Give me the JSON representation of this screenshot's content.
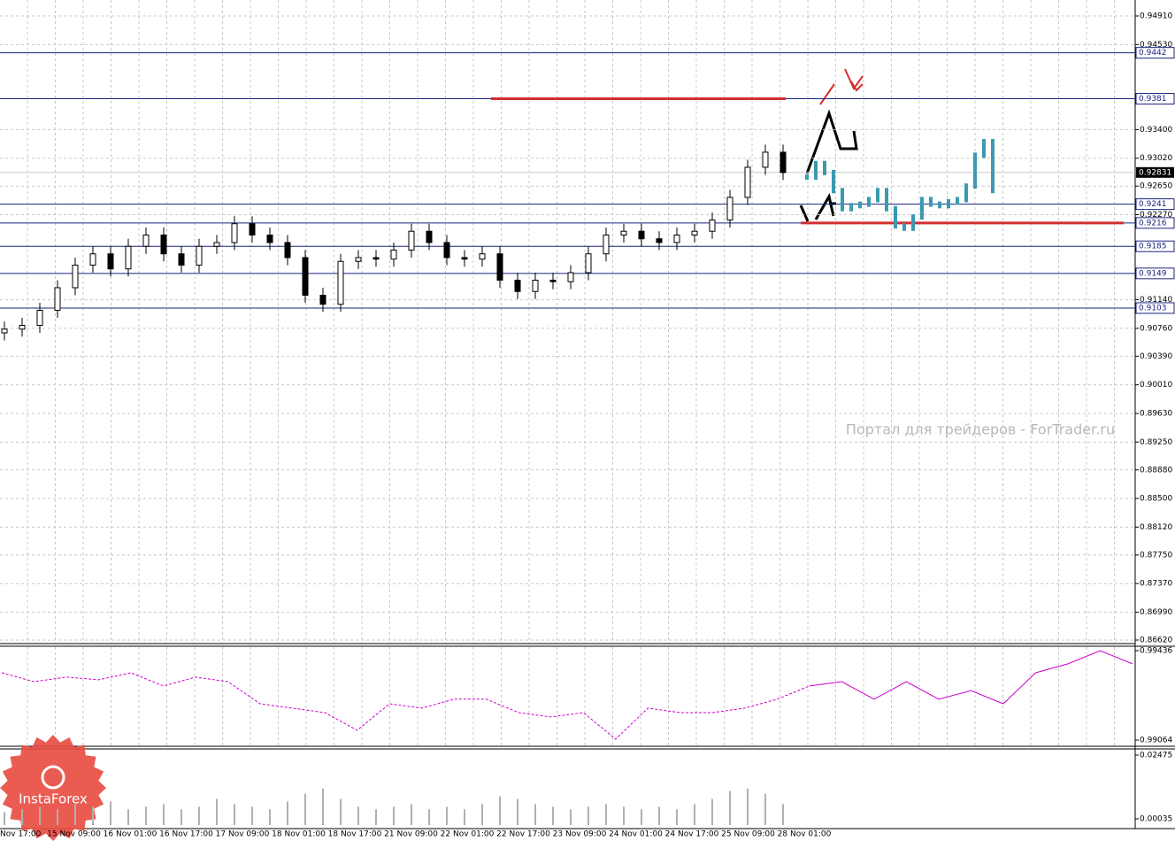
{
  "chart_data": [
    {
      "type": "candlestick",
      "x_labels": [
        "Nov 17:00",
        "15 Nov 09:00",
        "16 Nov 01:00",
        "16 Nov 17:00",
        "17 Nov 09:00",
        "18 Nov 01:00",
        "18 Nov 17:00",
        "21 Nov 09:00",
        "22 Nov 01:00",
        "22 Nov 17:00",
        "23 Nov 09:00",
        "24 Nov 01:00",
        "24 Nov 17:00",
        "25 Nov 09:00",
        "28 Nov 01:00"
      ],
      "ylim": [
        0.8662,
        0.9491
      ],
      "yticks": [
        {
          "value": 0.9491,
          "label": "0.94910"
        },
        {
          "value": 0.9453,
          "label": "0.94530"
        },
        {
          "value": 0.934,
          "label": "0.93400"
        },
        {
          "value": 0.9302,
          "label": "0.93020"
        },
        {
          "value": 0.9265,
          "label": "0.92650"
        },
        {
          "value": 0.9227,
          "label": "0.92270"
        },
        {
          "value": 0.9114,
          "label": "0.91140"
        },
        {
          "value": 0.9076,
          "label": "0.90760"
        },
        {
          "value": 0.9039,
          "label": "0.90390"
        },
        {
          "value": 0.9001,
          "label": "0.90010"
        },
        {
          "value": 0.8963,
          "label": "0.89630"
        },
        {
          "value": 0.8925,
          "label": "0.89250"
        },
        {
          "value": 0.8888,
          "label": "0.88880"
        },
        {
          "value": 0.885,
          "label": "0.88500"
        },
        {
          "value": 0.8812,
          "label": "0.88120"
        },
        {
          "value": 0.8775,
          "label": "0.87750"
        },
        {
          "value": 0.8737,
          "label": "0.87370"
        },
        {
          "value": 0.8699,
          "label": "0.86990"
        },
        {
          "value": 0.8662,
          "label": "0.86620"
        }
      ],
      "grid": true,
      "color": "#000000",
      "open": [
        0.907,
        0.9075,
        0.908,
        0.91,
        0.913,
        0.916,
        0.9175,
        0.9155,
        0.9185,
        0.92,
        0.9175,
        0.916,
        0.9185,
        0.919,
        0.9215,
        0.92,
        0.919,
        0.917,
        0.912,
        0.9108,
        0.9165,
        0.917,
        0.9168,
        0.918,
        0.9205,
        0.919,
        0.917,
        0.9168,
        0.9175,
        0.914,
        0.9125,
        0.914,
        0.9138,
        0.915,
        0.9175,
        0.92,
        0.9205,
        0.9195,
        0.919,
        0.92,
        0.9205,
        0.922,
        0.925,
        0.929,
        0.931
      ],
      "high": [
        0.9085,
        0.909,
        0.911,
        0.914,
        0.917,
        0.9185,
        0.9185,
        0.9195,
        0.921,
        0.921,
        0.9185,
        0.9195,
        0.92,
        0.9225,
        0.9225,
        0.921,
        0.92,
        0.918,
        0.913,
        0.9175,
        0.918,
        0.918,
        0.919,
        0.9215,
        0.9215,
        0.92,
        0.918,
        0.9185,
        0.9185,
        0.915,
        0.915,
        0.915,
        0.916,
        0.9185,
        0.921,
        0.9215,
        0.9215,
        0.9205,
        0.921,
        0.9215,
        0.923,
        0.926,
        0.93,
        0.932,
        0.932
      ],
      "low": [
        0.906,
        0.9065,
        0.907,
        0.909,
        0.912,
        0.915,
        0.9145,
        0.9145,
        0.9175,
        0.9165,
        0.915,
        0.915,
        0.9175,
        0.918,
        0.919,
        0.918,
        0.916,
        0.911,
        0.9098,
        0.9098,
        0.9155,
        0.9158,
        0.9158,
        0.917,
        0.918,
        0.916,
        0.9158,
        0.9158,
        0.913,
        0.9115,
        0.9115,
        0.9128,
        0.9128,
        0.914,
        0.9165,
        0.919,
        0.9185,
        0.918,
        0.918,
        0.919,
        0.9195,
        0.921,
        0.924,
        0.928,
        0.9273
      ],
      "close": [
        0.9075,
        0.908,
        0.91,
        0.913,
        0.916,
        0.9175,
        0.9155,
        0.9185,
        0.92,
        0.9175,
        0.916,
        0.9185,
        0.919,
        0.9215,
        0.92,
        0.919,
        0.917,
        0.912,
        0.9108,
        0.9165,
        0.917,
        0.9168,
        0.918,
        0.9205,
        0.919,
        0.917,
        0.9168,
        0.9175,
        0.914,
        0.9125,
        0.914,
        0.9138,
        0.915,
        0.9175,
        0.92,
        0.9205,
        0.9195,
        0.919,
        0.92,
        0.9205,
        0.922,
        0.925,
        0.929,
        0.931,
        0.9283
      ],
      "forecast": {
        "color": "#3a9ab0",
        "values": [
          0.9277,
          0.9295,
          0.9283,
          0.9259,
          0.9235,
          0.9239,
          0.9241,
          0.9247,
          0.9259,
          0.9235,
          0.9212,
          0.9209,
          0.9224,
          0.9247,
          0.9241,
          0.9239,
          0.9244,
          0.9247,
          0.9265,
          0.9306,
          0.9324,
          0.9259
        ]
      },
      "levels": {
        "color": "#1a237e",
        "values": [
          0.9442,
          0.9381,
          0.9241,
          0.9216,
          0.9185,
          0.9149,
          0.9103
        ]
      },
      "key_levels": {
        "color": "#d32f2f",
        "levels_index": [
          1,
          3
        ]
      },
      "last_price": 0.92831,
      "watermark": "Портал для трейдеров - ForTrader.ru"
    },
    {
      "type": "line",
      "color": "#cc00cc",
      "values": [
        0.99344,
        0.99307,
        0.99326,
        0.99315,
        0.99344,
        0.99289,
        0.99326,
        0.99307,
        0.99215,
        0.99197,
        0.99178,
        0.99105,
        0.99215,
        0.99197,
        0.99234,
        0.99234,
        0.99178,
        0.9916,
        0.99178,
        0.99068,
        0.99197,
        0.99178,
        0.99178,
        0.99197,
        0.99234,
        0.99289,
        0.99307,
        0.99234,
        0.99307,
        0.99234,
        0.9927,
        0.99215,
        0.99344,
        0.99381,
        0.99436,
        0.99381
      ],
      "ylim": [
        0.99064,
        0.99436
      ],
      "yticks": [
        0.99436,
        0.99064
      ]
    },
    {
      "type": "bar",
      "color": "#b0b0b0",
      "values": [
        0.003,
        0.004,
        0.005,
        0.004,
        0.006,
        0.005,
        0.007,
        0.004,
        0.005,
        0.006,
        0.004,
        0.005,
        0.008,
        0.006,
        0.005,
        0.004,
        0.007,
        0.01,
        0.012,
        0.008,
        0.005,
        0.004,
        0.005,
        0.006,
        0.004,
        0.005,
        0.004,
        0.006,
        0.009,
        0.008,
        0.006,
        0.005,
        0.004,
        0.005,
        0.006,
        0.005,
        0.004,
        0.005,
        0.004,
        0.006,
        0.008,
        0.011,
        0.012,
        0.01,
        0.006
      ],
      "ylim": [
        0.00035,
        0.02475
      ],
      "yticks": [
        0.02475,
        0.00035
      ]
    }
  ],
  "logo": "InstaForex"
}
